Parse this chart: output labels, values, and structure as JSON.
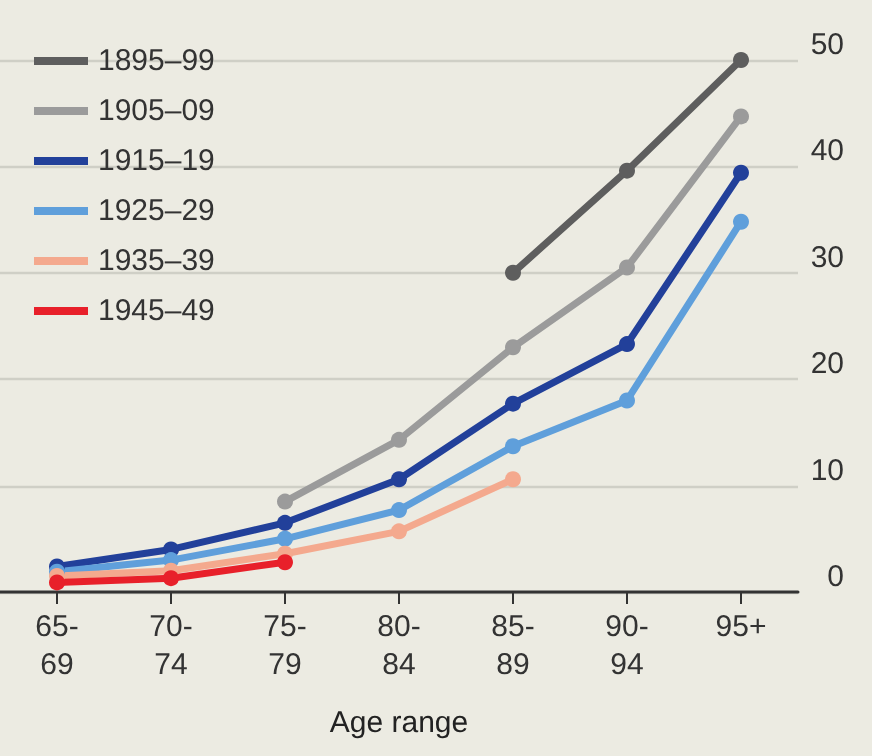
{
  "chart_data": {
    "type": "line",
    "xlabel": "Age range",
    "categories": [
      "65-\n69",
      "70-\n74",
      "75-\n79",
      "80-\n84",
      "85-\n89",
      "90-\n94",
      "95+"
    ],
    "ylim": [
      0,
      50
    ],
    "yticks": [
      0,
      10,
      20,
      30,
      40,
      50
    ],
    "grid": "y",
    "legend": "top left",
    "marker": "circle",
    "line_style": "solid",
    "series": [
      {
        "name": "1895–99",
        "color": "#5e5e5e",
        "values": [
          null,
          null,
          null,
          null,
          30,
          39.6,
          50
        ]
      },
      {
        "name": "1905–09",
        "color": "#9b9b9b",
        "values": [
          null,
          null,
          8.5,
          14.3,
          23,
          30.5,
          44.7
        ]
      },
      {
        "name": "1915–19",
        "color": "#22409a",
        "values": [
          2.4,
          4,
          6.5,
          10.6,
          17.7,
          23.3,
          39.4
        ]
      },
      {
        "name": "1925–29",
        "color": "#5f9fdb",
        "values": [
          1.9,
          3,
          5,
          7.7,
          13.7,
          18,
          34.8
        ]
      },
      {
        "name": "1935–39",
        "color": "#f4a98e",
        "values": [
          1.5,
          2,
          3.6,
          5.7,
          10.6,
          null,
          null
        ]
      },
      {
        "name": "1945–49",
        "color": "#e8202a",
        "values": [
          0.9,
          1.3,
          2.8,
          null,
          null,
          null,
          null
        ]
      }
    ]
  }
}
